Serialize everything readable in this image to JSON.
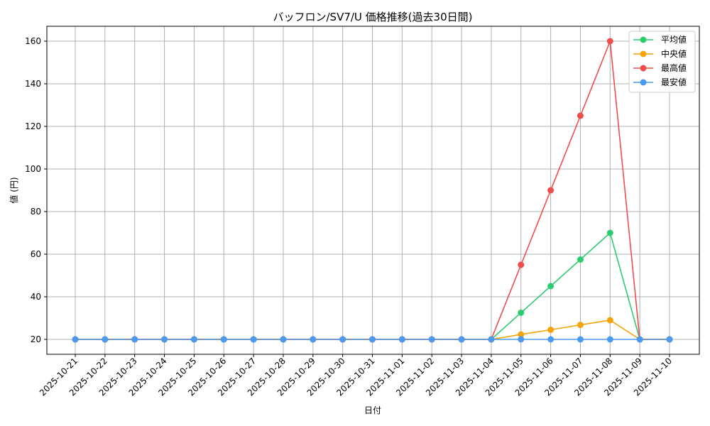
{
  "chart_data": {
    "type": "line",
    "title": "バッフロン/SV7/U 価格推移(過去30日間)",
    "xlabel": "日付",
    "ylabel": "値 (円)",
    "categories": [
      "2025-10-21",
      "2025-10-22",
      "2025-10-23",
      "2025-10-24",
      "2025-10-25",
      "2025-10-26",
      "2025-10-27",
      "2025-10-28",
      "2025-10-29",
      "2025-10-30",
      "2025-10-31",
      "2025-11-01",
      "2025-11-02",
      "2025-11-03",
      "2025-11-04",
      "2025-11-05",
      "2025-11-06",
      "2025-11-07",
      "2025-11-08",
      "2025-11-09",
      "2025-11-10"
    ],
    "ylim": [
      13,
      167
    ],
    "yticks": [
      20,
      40,
      60,
      80,
      100,
      120,
      140,
      160
    ],
    "grid": true,
    "legend_position": "top-right",
    "series": [
      {
        "name": "平均値",
        "color": "#2ecc71",
        "values": [
          20,
          20,
          20,
          20,
          20,
          20,
          20,
          20,
          20,
          20,
          20,
          20,
          20,
          20,
          20,
          32.5,
          45,
          57.5,
          70,
          20,
          20
        ]
      },
      {
        "name": "中央値",
        "color": "#f5a30a",
        "values": [
          20,
          20,
          20,
          20,
          20,
          20,
          20,
          20,
          20,
          20,
          20,
          20,
          20,
          20,
          20,
          22.3,
          24.5,
          26.8,
          29,
          20,
          20
        ]
      },
      {
        "name": "最高値",
        "color": "#ef4c4c",
        "values": [
          20,
          20,
          20,
          20,
          20,
          20,
          20,
          20,
          20,
          20,
          20,
          20,
          20,
          20,
          20,
          55,
          90,
          125,
          160,
          20,
          20
        ]
      },
      {
        "name": "最安値",
        "color": "#4a9af0",
        "values": [
          20,
          20,
          20,
          20,
          20,
          20,
          20,
          20,
          20,
          20,
          20,
          20,
          20,
          20,
          20,
          20,
          20,
          20,
          20,
          20,
          20
        ]
      }
    ]
  }
}
